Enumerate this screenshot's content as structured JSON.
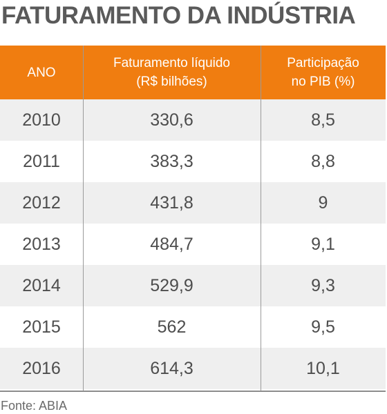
{
  "title": "FATURAMENTO DA INDÚSTRIA",
  "source": "Fonte: ABIA",
  "colors": {
    "header_bg": "#f07d10",
    "header_text": "#ffffff",
    "row_shade": "#efefef",
    "title_text": "#5a5a5a"
  },
  "chart_data": {
    "type": "table",
    "title": "FATURAMENTO DA INDÚSTRIA",
    "columns": [
      [
        "ANO"
      ],
      [
        "Faturamento líquido",
        "(R$ bilhões)"
      ],
      [
        "Participação",
        "no PIB (%)"
      ]
    ],
    "rows": [
      [
        "2010",
        "330,6",
        "8,5"
      ],
      [
        "2011",
        "383,3",
        "8,8"
      ],
      [
        "2012",
        "431,8",
        "9"
      ],
      [
        "2013",
        "484,7",
        "9,1"
      ],
      [
        "2014",
        "529,9",
        "9,3"
      ],
      [
        "2015",
        "562",
        "9,5"
      ],
      [
        "2016",
        "614,3",
        "10,1"
      ]
    ],
    "source": "Fonte: ABIA"
  }
}
